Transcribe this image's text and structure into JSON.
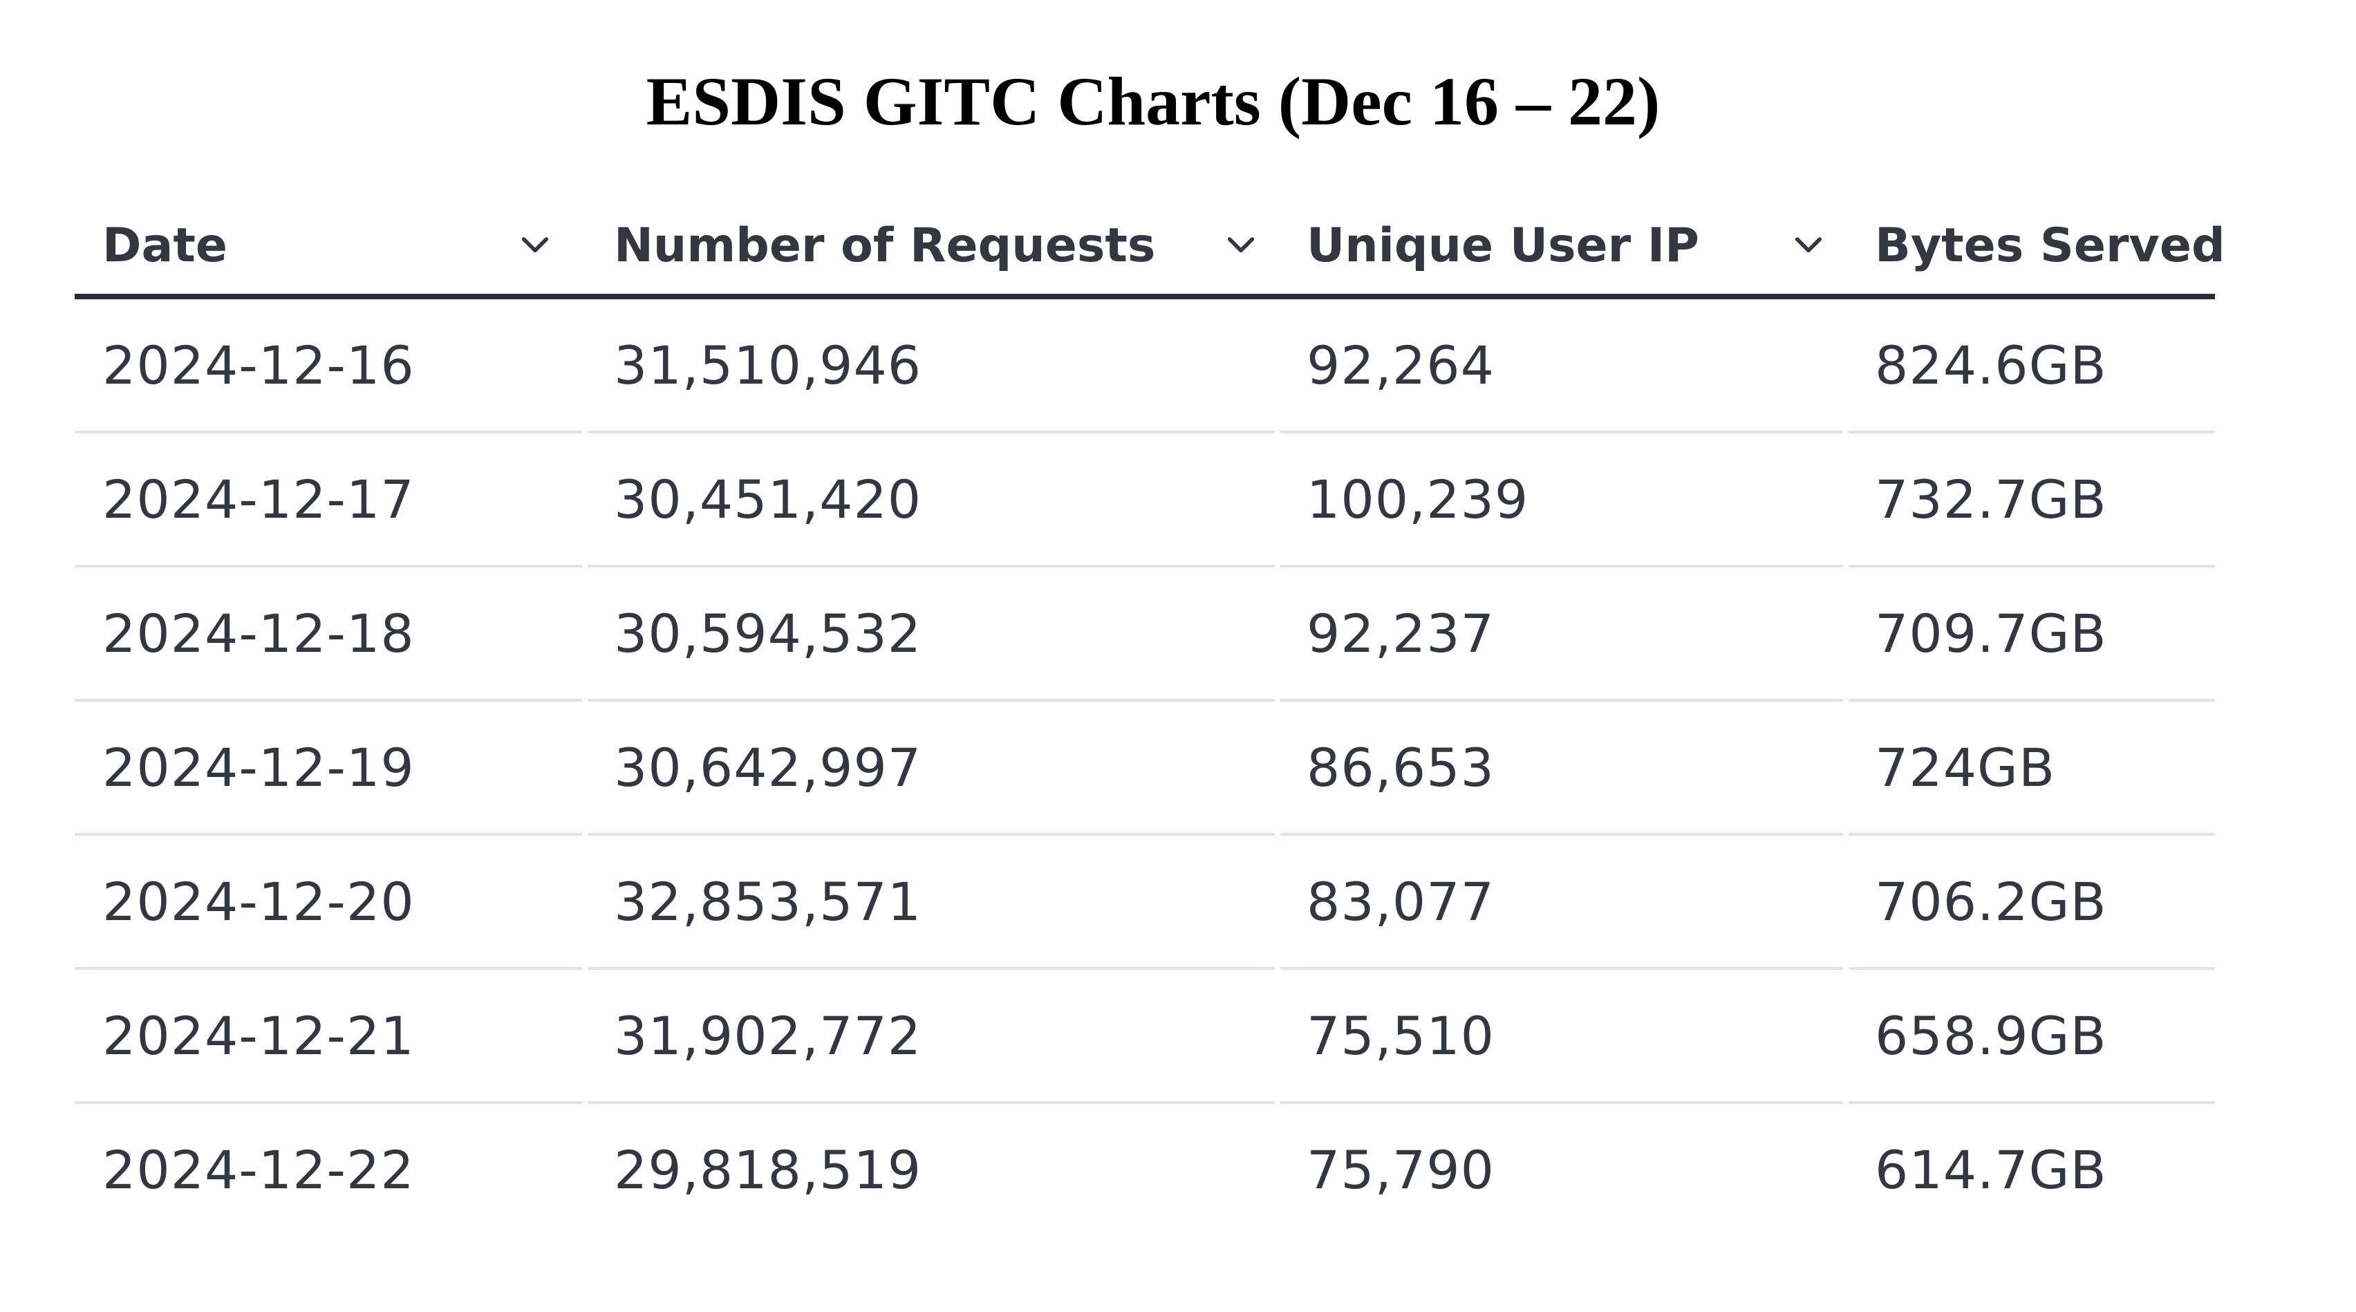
{
  "title": "ESDIS GITC Charts (Dec 16 – 22)",
  "table": {
    "columns": [
      {
        "label": "Date",
        "sort_icon": "chevron-down-icon"
      },
      {
        "label": "Number of Requests",
        "sort_icon": "chevron-down-icon"
      },
      {
        "label": "Unique User IP",
        "sort_icon": "chevron-down-icon"
      },
      {
        "label": "Bytes Served"
      }
    ],
    "rows": [
      [
        "2024-12-16",
        "31,510,946",
        "92,264",
        "824.6GB"
      ],
      [
        "2024-12-17",
        "30,451,420",
        "100,239",
        "732.7GB"
      ],
      [
        "2024-12-18",
        "30,594,532",
        "92,237",
        "709.7GB"
      ],
      [
        "2024-12-19",
        "30,642,997",
        "86,653",
        "724GB"
      ],
      [
        "2024-12-20",
        "32,853,571",
        "83,077",
        "706.2GB"
      ],
      [
        "2024-12-21",
        "31,902,772",
        "75,510",
        "658.9GB"
      ],
      [
        "2024-12-22",
        "29,818,519",
        "75,790",
        "614.7GB"
      ]
    ]
  },
  "colors": {
    "text": "#343741",
    "header_rule": "#2a2d38",
    "row_rule": "#dfe2ea"
  }
}
